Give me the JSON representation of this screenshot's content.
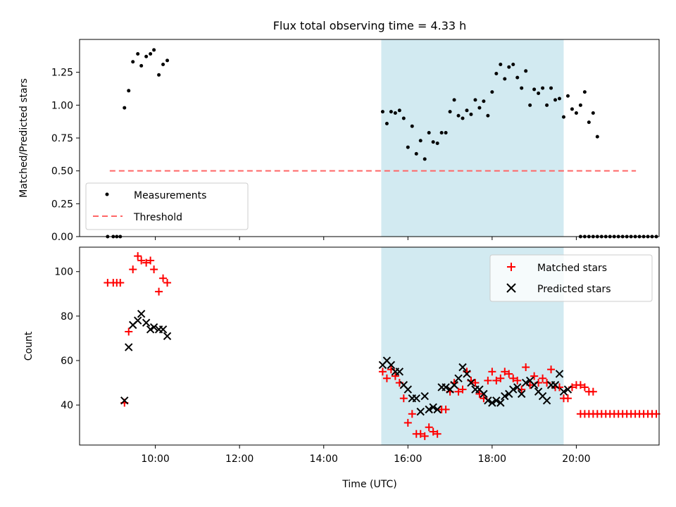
{
  "chart_data": [
    {
      "type": "scatter",
      "title": "Flux total observing time = 4.33 h",
      "ylabel": "Matched/Predicted stars",
      "xlabel": "",
      "xlim": [
        "08:12",
        "21:58"
      ],
      "ylim": [
        0,
        1.5
      ],
      "grid": false,
      "legend_position": "lower-left",
      "shaded_region": {
        "x": [
          "15:22",
          "19:42"
        ],
        "color": "#add8e6"
      },
      "x_ticks": [
        "10:00",
        "12:00",
        "14:00",
        "16:00",
        "18:00",
        "20:00"
      ],
      "y_ticks": [
        "0.00",
        "0.25",
        "0.50",
        "0.75",
        "1.00",
        "1.25"
      ],
      "threshold": {
        "name": "Threshold",
        "value": 0.5,
        "x": [
          "08:55",
          "21:25"
        ],
        "color": "#ff6666"
      },
      "series": [
        {
          "name": "Measurements",
          "color": "#000000",
          "marker": "dot",
          "points": [
            [
              "08:52",
              0.0
            ],
            [
              "09:00",
              0.0
            ],
            [
              "09:05",
              0.0
            ],
            [
              "09:10",
              0.0
            ],
            [
              "09:16",
              0.98
            ],
            [
              "09:22",
              1.11
            ],
            [
              "09:28",
              1.33
            ],
            [
              "09:35",
              1.39
            ],
            [
              "09:40",
              1.3
            ],
            [
              "09:47",
              1.37
            ],
            [
              "09:53",
              1.39
            ],
            [
              "09:58",
              1.42
            ],
            [
              "10:05",
              1.23
            ],
            [
              "10:11",
              1.31
            ],
            [
              "10:17",
              1.34
            ],
            [
              "15:24",
              0.95
            ],
            [
              "15:30",
              0.86
            ],
            [
              "15:36",
              0.95
            ],
            [
              "15:42",
              0.94
            ],
            [
              "15:48",
              0.96
            ],
            [
              "15:54",
              0.9
            ],
            [
              "16:00",
              0.68
            ],
            [
              "16:06",
              0.84
            ],
            [
              "16:12",
              0.63
            ],
            [
              "16:18",
              0.73
            ],
            [
              "16:24",
              0.59
            ],
            [
              "16:30",
              0.79
            ],
            [
              "16:36",
              0.72
            ],
            [
              "16:42",
              0.71
            ],
            [
              "16:48",
              0.79
            ],
            [
              "16:54",
              0.79
            ],
            [
              "17:00",
              0.95
            ],
            [
              "17:06",
              1.04
            ],
            [
              "17:12",
              0.92
            ],
            [
              "17:18",
              0.9
            ],
            [
              "17:24",
              0.96
            ],
            [
              "17:30",
              0.93
            ],
            [
              "17:36",
              1.04
            ],
            [
              "17:42",
              0.98
            ],
            [
              "17:48",
              1.03
            ],
            [
              "17:54",
              0.92
            ],
            [
              "18:00",
              1.1
            ],
            [
              "18:06",
              1.24
            ],
            [
              "18:12",
              1.31
            ],
            [
              "18:18",
              1.2
            ],
            [
              "18:24",
              1.29
            ],
            [
              "18:30",
              1.31
            ],
            [
              "18:36",
              1.21
            ],
            [
              "18:42",
              1.13
            ],
            [
              "18:48",
              1.26
            ],
            [
              "18:54",
              1.0
            ],
            [
              "19:00",
              1.12
            ],
            [
              "19:06",
              1.09
            ],
            [
              "19:12",
              1.13
            ],
            [
              "19:18",
              1.0
            ],
            [
              "19:24",
              1.13
            ],
            [
              "19:30",
              1.04
            ],
            [
              "19:36",
              1.05
            ],
            [
              "19:42",
              0.91
            ],
            [
              "19:48",
              1.07
            ],
            [
              "19:54",
              0.97
            ],
            [
              "20:00",
              0.94
            ],
            [
              "20:06",
              1.0
            ],
            [
              "20:12",
              1.1
            ],
            [
              "20:18",
              0.87
            ],
            [
              "20:24",
              0.94
            ],
            [
              "20:30",
              0.76
            ],
            [
              "20:06",
              0.0
            ],
            [
              "20:12",
              0.0
            ],
            [
              "20:18",
              0.0
            ],
            [
              "20:24",
              0.0
            ],
            [
              "20:30",
              0.0
            ],
            [
              "20:36",
              0.0
            ],
            [
              "20:42",
              0.0
            ],
            [
              "20:48",
              0.0
            ],
            [
              "20:54",
              0.0
            ],
            [
              "21:00",
              0.0
            ],
            [
              "21:06",
              0.0
            ],
            [
              "21:12",
              0.0
            ],
            [
              "21:18",
              0.0
            ],
            [
              "21:24",
              0.0
            ],
            [
              "21:30",
              0.0
            ],
            [
              "21:36",
              0.0
            ],
            [
              "21:42",
              0.0
            ],
            [
              "21:48",
              0.0
            ],
            [
              "21:54",
              0.0
            ]
          ]
        }
      ]
    },
    {
      "type": "scatter",
      "title": "",
      "ylabel": "Count",
      "xlabel": "Time (UTC)",
      "xlim": [
        "08:12",
        "21:58"
      ],
      "ylim": [
        22,
        111
      ],
      "grid": false,
      "legend_position": "upper-right",
      "shaded_region": {
        "x": [
          "15:22",
          "19:42"
        ],
        "color": "#add8e6"
      },
      "x_ticks": [
        "10:00",
        "12:00",
        "14:00",
        "16:00",
        "18:00",
        "20:00"
      ],
      "y_ticks": [
        "40",
        "60",
        "80",
        "100"
      ],
      "series": [
        {
          "name": "Matched stars",
          "color": "#ff0000",
          "marker": "plus",
          "points": [
            [
              "08:52",
              95
            ],
            [
              "09:00",
              95
            ],
            [
              "09:05",
              95
            ],
            [
              "09:10",
              95
            ],
            [
              "09:16",
              41
            ],
            [
              "09:22",
              73
            ],
            [
              "09:28",
              101
            ],
            [
              "09:35",
              107
            ],
            [
              "09:40",
              105
            ],
            [
              "09:47",
              104
            ],
            [
              "09:53",
              105
            ],
            [
              "09:58",
              101
            ],
            [
              "10:05",
              91
            ],
            [
              "10:11",
              97
            ],
            [
              "10:17",
              95
            ],
            [
              "15:24",
              55
            ],
            [
              "15:30",
              52
            ],
            [
              "15:36",
              56
            ],
            [
              "15:42",
              53
            ],
            [
              "15:48",
              50
            ],
            [
              "15:54",
              43
            ],
            [
              "16:00",
              32
            ],
            [
              "16:06",
              36
            ],
            [
              "16:12",
              27
            ],
            [
              "16:18",
              27
            ],
            [
              "16:24",
              26
            ],
            [
              "16:30",
              30
            ],
            [
              "16:36",
              28
            ],
            [
              "16:42",
              27
            ],
            [
              "16:48",
              38
            ],
            [
              "16:54",
              38
            ],
            [
              "17:00",
              46
            ],
            [
              "17:06",
              50
            ],
            [
              "17:12",
              46
            ],
            [
              "17:18",
              47
            ],
            [
              "17:24",
              55
            ],
            [
              "17:30",
              51
            ],
            [
              "17:36",
              50
            ],
            [
              "17:42",
              45
            ],
            [
              "17:48",
              43
            ],
            [
              "17:54",
              51
            ],
            [
              "18:00",
              55
            ],
            [
              "18:06",
              51
            ],
            [
              "18:12",
              52
            ],
            [
              "18:18",
              55
            ],
            [
              "18:24",
              54
            ],
            [
              "18:30",
              52
            ],
            [
              "18:36",
              51
            ],
            [
              "18:42",
              47
            ],
            [
              "18:48",
              57
            ],
            [
              "18:54",
              49
            ],
            [
              "19:00",
              53
            ],
            [
              "19:06",
              50
            ],
            [
              "19:12",
              52
            ],
            [
              "19:18",
              50
            ],
            [
              "19:24",
              56
            ],
            [
              "19:30",
              48
            ],
            [
              "19:36",
              48
            ],
            [
              "19:42",
              43
            ],
            [
              "19:48",
              43
            ],
            [
              "19:54",
              48
            ],
            [
              "20:00",
              49
            ],
            [
              "20:06",
              49
            ],
            [
              "20:12",
              48
            ],
            [
              "20:18",
              46
            ],
            [
              "20:24",
              46
            ],
            [
              "20:06",
              36
            ],
            [
              "20:12",
              36
            ],
            [
              "20:18",
              36
            ],
            [
              "20:24",
              36
            ],
            [
              "20:30",
              36
            ],
            [
              "20:36",
              36
            ],
            [
              "20:42",
              36
            ],
            [
              "20:48",
              36
            ],
            [
              "20:54",
              36
            ],
            [
              "21:00",
              36
            ],
            [
              "21:06",
              36
            ],
            [
              "21:12",
              36
            ],
            [
              "21:18",
              36
            ],
            [
              "21:24",
              36
            ],
            [
              "21:30",
              36
            ],
            [
              "21:36",
              36
            ],
            [
              "21:42",
              36
            ],
            [
              "21:48",
              36
            ],
            [
              "21:54",
              36
            ]
          ]
        },
        {
          "name": "Predicted stars",
          "color": "#000000",
          "marker": "x",
          "points": [
            [
              "09:16",
              42
            ],
            [
              "09:22",
              66
            ],
            [
              "09:28",
              76
            ],
            [
              "09:35",
              78
            ],
            [
              "09:40",
              81
            ],
            [
              "09:47",
              77
            ],
            [
              "09:53",
              74
            ],
            [
              "09:58",
              75
            ],
            [
              "10:05",
              74
            ],
            [
              "10:11",
              74
            ],
            [
              "10:17",
              71
            ],
            [
              "15:24",
              58
            ],
            [
              "15:30",
              60
            ],
            [
              "15:36",
              58
            ],
            [
              "15:42",
              55
            ],
            [
              "15:48",
              55
            ],
            [
              "15:54",
              49
            ],
            [
              "16:00",
              47
            ],
            [
              "16:06",
              43
            ],
            [
              "16:12",
              43
            ],
            [
              "16:18",
              37
            ],
            [
              "16:24",
              44
            ],
            [
              "16:30",
              38
            ],
            [
              "16:36",
              39
            ],
            [
              "16:42",
              38
            ],
            [
              "16:48",
              48
            ],
            [
              "16:54",
              48
            ],
            [
              "17:00",
              47
            ],
            [
              "17:06",
              49
            ],
            [
              "17:12",
              52
            ],
            [
              "17:18",
              57
            ],
            [
              "17:24",
              54
            ],
            [
              "17:30",
              50
            ],
            [
              "17:36",
              47
            ],
            [
              "17:42",
              47
            ],
            [
              "17:48",
              45
            ],
            [
              "17:54",
              42
            ],
            [
              "18:00",
              41
            ],
            [
              "18:06",
              42
            ],
            [
              "18:12",
              41
            ],
            [
              "18:18",
              44
            ],
            [
              "18:24",
              45
            ],
            [
              "18:30",
              47
            ],
            [
              "18:36",
              48
            ],
            [
              "18:42",
              45
            ],
            [
              "18:48",
              50
            ],
            [
              "18:54",
              51
            ],
            [
              "19:00",
              49
            ],
            [
              "19:06",
              46
            ],
            [
              "19:12",
              44
            ],
            [
              "19:18",
              42
            ],
            [
              "19:24",
              49
            ],
            [
              "19:30",
              49
            ],
            [
              "19:36",
              54
            ],
            [
              "19:42",
              46
            ],
            [
              "19:48",
              47
            ]
          ]
        }
      ]
    }
  ]
}
